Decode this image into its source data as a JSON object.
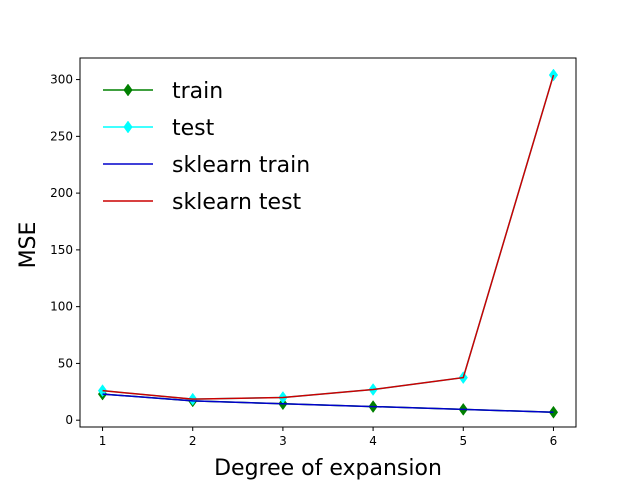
{
  "chart_data": {
    "type": "line",
    "title": "",
    "xlabel": "Degree of expansion",
    "ylabel": "MSE",
    "x": [
      1,
      2,
      3,
      4,
      5,
      6
    ],
    "xlim": [
      0.75,
      6.25
    ],
    "ylim": [
      -6,
      319
    ],
    "xticks": [
      1,
      2,
      3,
      4,
      5,
      6
    ],
    "yticks": [
      0,
      50,
      100,
      150,
      200,
      250,
      300
    ],
    "grid": false,
    "legend_position": "top-left",
    "series": [
      {
        "name": "train",
        "values": [
          23,
          17,
          14.5,
          12,
          9.5,
          7
        ],
        "color": "#008000",
        "marker": "diamond",
        "line": true
      },
      {
        "name": "test",
        "values": [
          26,
          18.5,
          20,
          27,
          37.5,
          304
        ],
        "color": "#00ffff",
        "marker": "diamond",
        "line": true
      },
      {
        "name": "sklearn train",
        "values": [
          23,
          17,
          14.5,
          12,
          9.5,
          7
        ],
        "color": "#0000cc",
        "marker": "none",
        "line": true
      },
      {
        "name": "sklearn test",
        "values": [
          26,
          18.5,
          20,
          27,
          37.5,
          304
        ],
        "color": "#cc0000",
        "marker": "none",
        "line": true
      }
    ]
  }
}
